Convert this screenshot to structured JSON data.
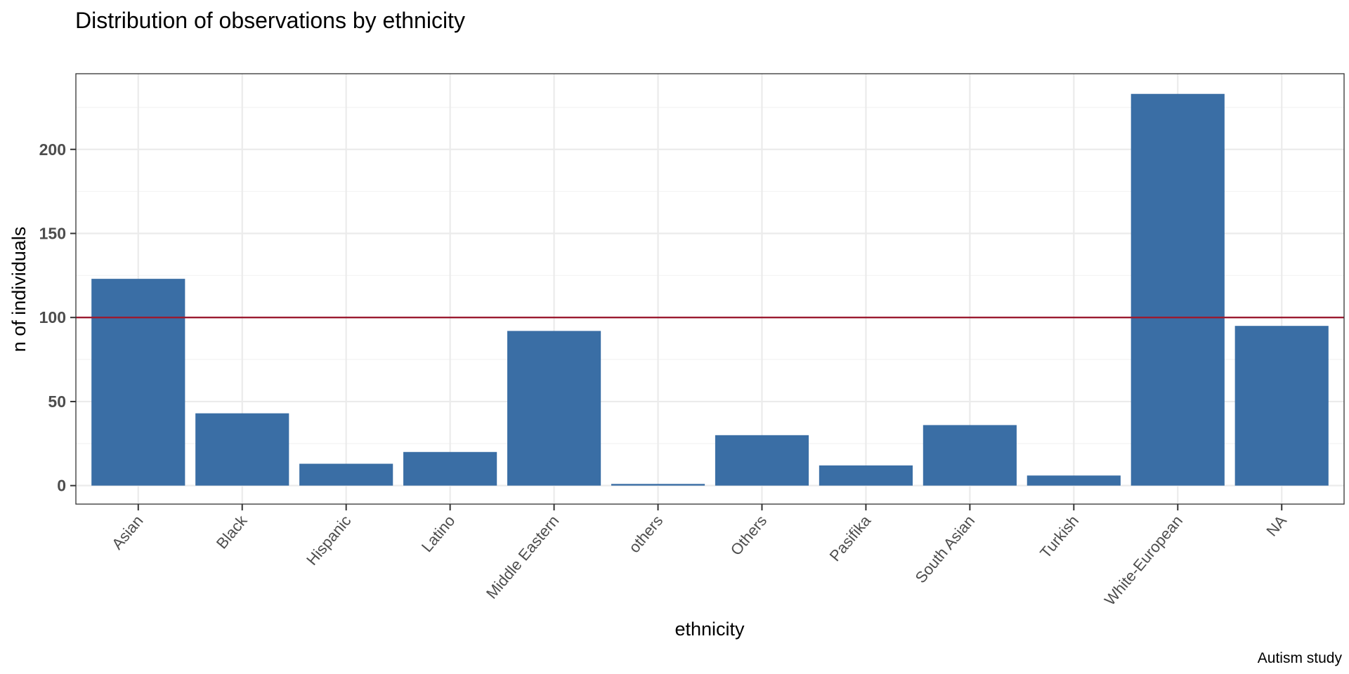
{
  "chart_data": {
    "type": "bar",
    "title": "Distribution of observations by ethnicity",
    "xlabel": "ethnicity",
    "ylabel": "n of individuals",
    "caption": "Autism study",
    "categories": [
      "Asian",
      "Black",
      "Hispanic",
      "Latino",
      "Middle Eastern",
      "others",
      "Others",
      "Pasifika",
      "South Asian",
      "Turkish",
      "White-European",
      "NA"
    ],
    "values": [
      123,
      43,
      13,
      20,
      92,
      1,
      30,
      12,
      36,
      6,
      233,
      95
    ],
    "yticks": [
      0,
      50,
      100,
      150,
      200
    ],
    "ylim": [
      -11,
      245
    ],
    "reference_line": {
      "y": 100,
      "color": "#9B1B30"
    },
    "bar_color": "#3A6EA5",
    "grid": true
  }
}
